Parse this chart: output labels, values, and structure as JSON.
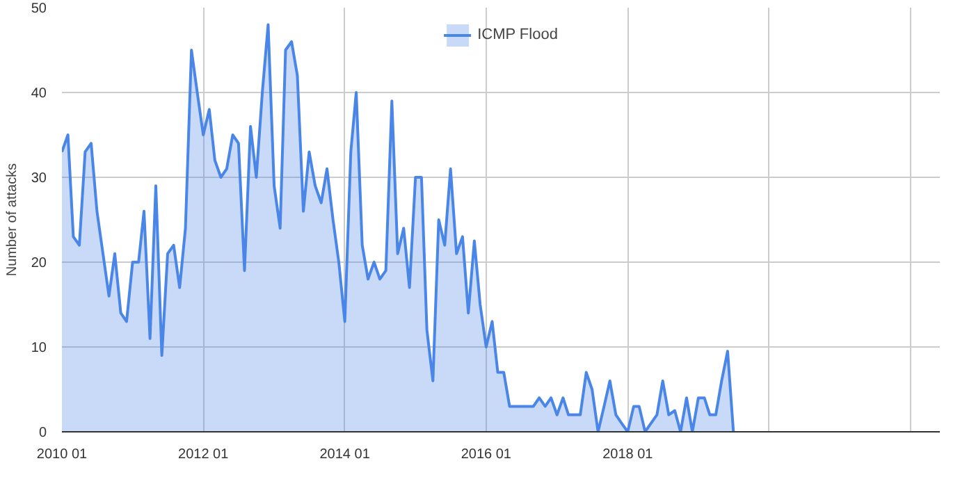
{
  "chart_data": {
    "type": "area",
    "ylabel": "Number of attacks",
    "x": [
      "2010-01",
      "2010-02",
      "2010-03",
      "2010-04",
      "2010-05",
      "2010-06",
      "2010-07",
      "2010-08",
      "2010-09",
      "2010-10",
      "2010-11",
      "2010-12",
      "2011-01",
      "2011-02",
      "2011-03",
      "2011-04",
      "2011-05",
      "2011-06",
      "2011-07",
      "2011-08",
      "2011-09",
      "2011-10",
      "2011-11",
      "2011-12",
      "2012-01",
      "2012-02",
      "2012-03",
      "2012-04",
      "2012-05",
      "2012-06",
      "2012-07",
      "2012-08",
      "2012-09",
      "2012-10",
      "2012-11",
      "2012-12",
      "2013-01",
      "2013-02",
      "2013-03",
      "2013-04",
      "2013-05",
      "2013-06",
      "2013-07",
      "2013-08",
      "2013-09",
      "2013-10",
      "2013-11",
      "2013-12",
      "2014-01",
      "2014-02",
      "2014-03",
      "2014-04",
      "2014-05",
      "2014-06",
      "2014-07",
      "2014-08",
      "2014-09",
      "2014-10",
      "2014-11",
      "2014-12",
      "2015-01",
      "2015-02",
      "2015-03",
      "2015-04",
      "2015-05",
      "2015-06",
      "2015-07",
      "2015-08",
      "2015-09",
      "2015-10",
      "2015-11",
      "2015-12",
      "2016-01",
      "2016-02",
      "2016-03",
      "2016-04",
      "2016-05",
      "2016-06",
      "2016-07",
      "2016-08",
      "2016-09",
      "2016-10",
      "2016-11",
      "2016-12",
      "2017-01",
      "2017-02",
      "2017-03",
      "2017-04",
      "2017-05",
      "2017-06",
      "2017-07",
      "2017-08",
      "2017-09",
      "2017-10",
      "2017-11",
      "2017-12",
      "2018-01",
      "2018-02",
      "2018-03",
      "2018-04",
      "2018-05",
      "2018-06",
      "2018-07",
      "2018-08",
      "2018-09",
      "2018-10",
      "2018-11",
      "2018-12",
      "2019-01",
      "2019-02",
      "2019-03",
      "2019-04",
      "2019-05",
      "2019-06",
      "2019-07"
    ],
    "series": [
      {
        "name": "ICMP Flood",
        "color": "#4a86e8",
        "values": [
          33,
          35,
          23,
          22,
          33,
          34,
          26,
          21,
          16,
          21,
          14,
          13,
          20,
          20,
          26,
          11,
          29,
          9,
          21,
          22,
          17,
          24,
          45,
          40,
          35,
          38,
          32,
          30,
          31,
          35,
          34,
          19,
          36,
          30,
          40,
          48,
          29,
          24,
          45,
          46,
          42,
          26,
          33,
          29,
          27,
          31,
          25,
          20,
          13,
          33,
          40,
          22,
          18,
          20,
          18,
          19,
          39,
          21,
          24,
          17,
          30,
          30,
          12,
          6,
          25,
          22,
          31,
          21,
          23,
          14,
          22.5,
          15,
          10,
          13,
          7,
          7,
          3,
          3,
          3,
          3,
          3,
          4,
          3,
          4,
          2,
          4,
          2,
          2,
          2,
          7,
          5,
          0,
          3,
          6,
          2,
          1,
          0,
          3,
          3,
          0,
          1,
          2,
          6,
          2,
          2.5,
          0,
          4,
          0,
          4,
          4,
          2,
          2,
          6,
          9.5,
          0
        ]
      }
    ],
    "xlim": [
      "2010-01",
      "2022-06"
    ],
    "xticks": [
      {
        "value": "2010-01",
        "label": "2010 01"
      },
      {
        "value": "2012-01",
        "label": "2012 01"
      },
      {
        "value": "2014-01",
        "label": "2014 01"
      },
      {
        "value": "2016-01",
        "label": "2016 01"
      },
      {
        "value": "2018-01",
        "label": "2018 01"
      },
      {
        "value": "2020-01",
        "label": null
      },
      {
        "value": "2022-01",
        "label": null
      }
    ],
    "ylim": [
      0,
      50
    ],
    "yticks": [
      0,
      10,
      20,
      30,
      40,
      50
    ],
    "grid": true,
    "legend": "top"
  }
}
